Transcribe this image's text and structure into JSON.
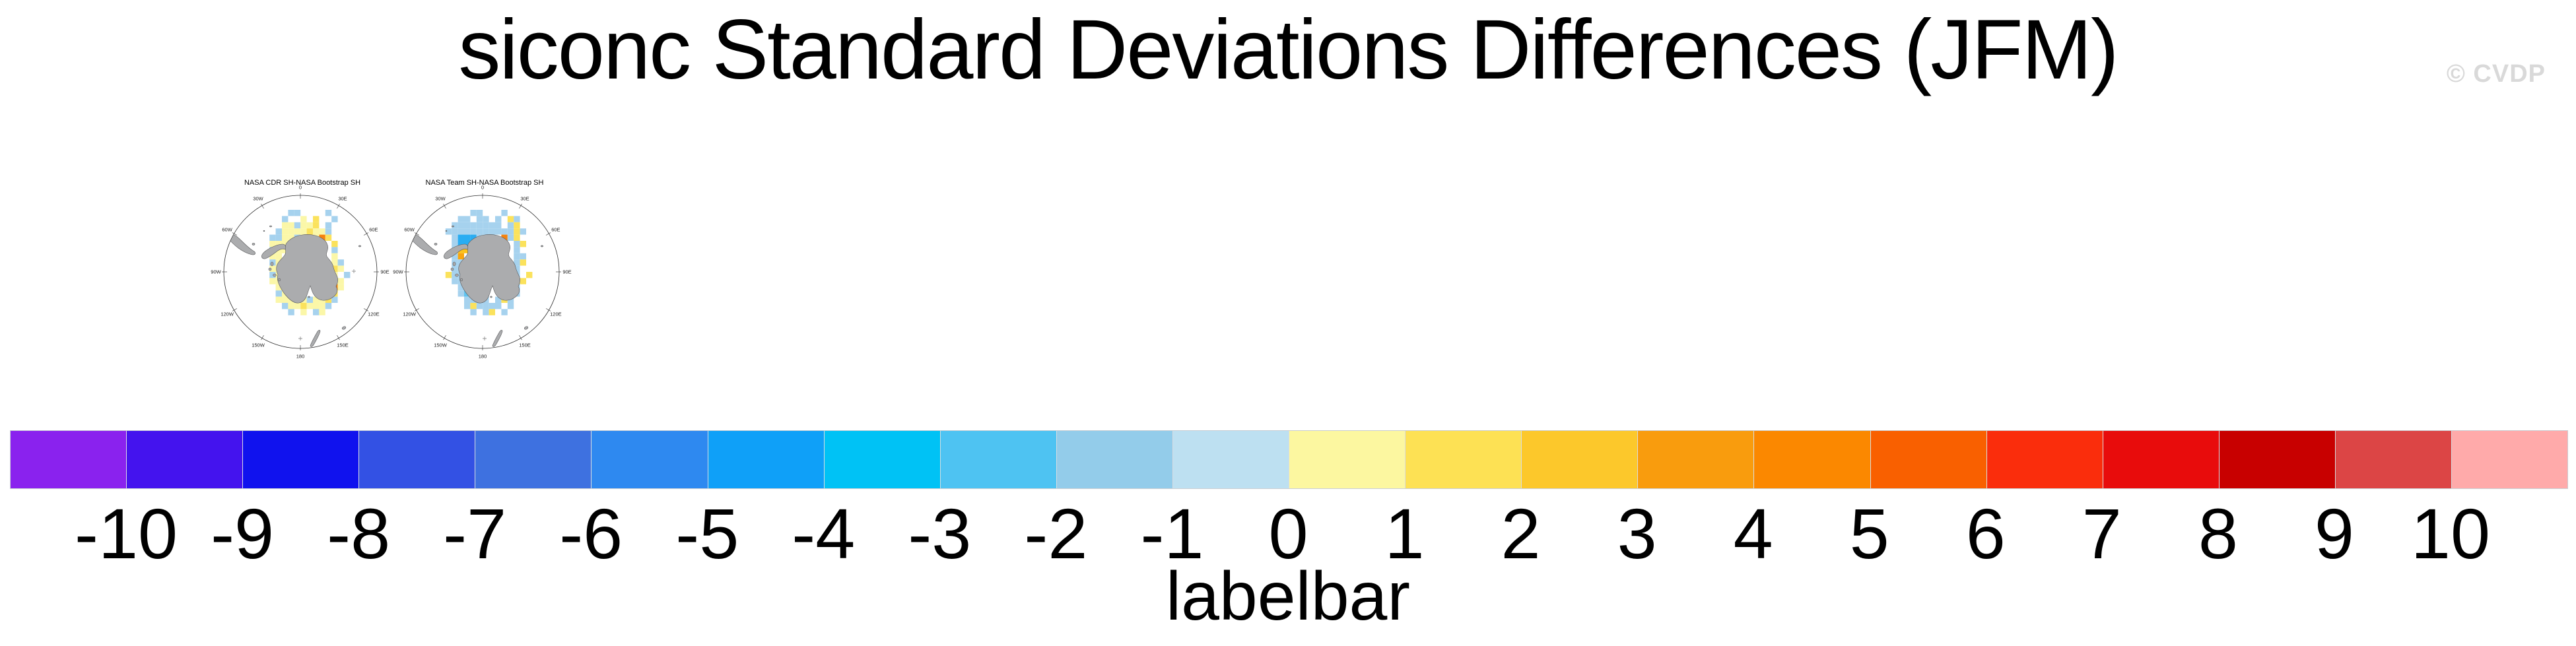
{
  "page": {
    "title": "siconc Standard Deviations Differences (JFM)",
    "watermark": "© CVDP"
  },
  "panels": [
    {
      "title": "NASA CDR SH-NASA Bootstrap SH",
      "lon_labels": [
        "0",
        "30E",
        "60E",
        "90E",
        "120E",
        "150E",
        "180",
        "150W",
        "120W",
        "90W",
        "60W",
        "30W"
      ],
      "cells": [
        [
          6,
          0,
          "lb"
        ],
        [
          7,
          0,
          "lb"
        ],
        [
          12,
          0,
          "lb"
        ],
        [
          5,
          1,
          "lb"
        ],
        [
          8,
          1,
          "py"
        ],
        [
          10,
          1,
          "yl"
        ],
        [
          13,
          1,
          "lb"
        ],
        [
          5,
          2,
          "py"
        ],
        [
          6,
          2,
          "py"
        ],
        [
          7,
          2,
          "lb"
        ],
        [
          8,
          2,
          "py"
        ],
        [
          9,
          2,
          "py"
        ],
        [
          10,
          2,
          "yl"
        ],
        [
          12,
          2,
          "lb"
        ],
        [
          4,
          3,
          "lb"
        ],
        [
          5,
          3,
          "py"
        ],
        [
          6,
          3,
          "py"
        ],
        [
          7,
          3,
          "py"
        ],
        [
          8,
          3,
          "py"
        ],
        [
          9,
          3,
          "yl"
        ],
        [
          10,
          3,
          "py"
        ],
        [
          11,
          3,
          "py"
        ],
        [
          12,
          3,
          "lb"
        ],
        [
          3,
          4,
          "lb"
        ],
        [
          4,
          4,
          "lb"
        ],
        [
          5,
          4,
          "py"
        ],
        [
          6,
          4,
          "py"
        ],
        [
          7,
          4,
          "lb"
        ],
        [
          8,
          4,
          "py"
        ],
        [
          9,
          4,
          "py"
        ],
        [
          10,
          4,
          "py"
        ],
        [
          11,
          4,
          "or"
        ],
        [
          12,
          4,
          "yl"
        ],
        [
          3,
          5,
          "py"
        ],
        [
          4,
          5,
          "py"
        ],
        [
          5,
          5,
          "py"
        ],
        [
          6,
          5,
          "py"
        ],
        [
          13,
          5,
          "yl"
        ],
        [
          3,
          6,
          "lb"
        ],
        [
          4,
          6,
          "py"
        ],
        [
          5,
          6,
          "py"
        ],
        [
          6,
          6,
          "py"
        ],
        [
          13,
          6,
          "lb"
        ],
        [
          3,
          7,
          "py"
        ],
        [
          4,
          7,
          "py"
        ],
        [
          13,
          7,
          "py"
        ],
        [
          3,
          8,
          "lb"
        ],
        [
          4,
          8,
          "py"
        ],
        [
          13,
          8,
          "py"
        ],
        [
          14,
          8,
          "lb"
        ],
        [
          3,
          9,
          "py"
        ],
        [
          4,
          9,
          "py"
        ],
        [
          13,
          9,
          "yl"
        ],
        [
          14,
          9,
          "py"
        ],
        [
          3,
          10,
          "lb"
        ],
        [
          4,
          10,
          "py"
        ],
        [
          5,
          10,
          "py"
        ],
        [
          13,
          10,
          "py"
        ],
        [
          15,
          10,
          "lb"
        ],
        [
          3,
          11,
          "py"
        ],
        [
          4,
          11,
          "py"
        ],
        [
          5,
          11,
          "py"
        ],
        [
          13,
          11,
          "yl"
        ],
        [
          14,
          11,
          "py"
        ],
        [
          4,
          12,
          "py"
        ],
        [
          5,
          12,
          "lb"
        ],
        [
          6,
          12,
          "py"
        ],
        [
          13,
          12,
          "or"
        ],
        [
          14,
          12,
          "py"
        ],
        [
          4,
          13,
          "lb"
        ],
        [
          5,
          13,
          "py"
        ],
        [
          6,
          13,
          "lb"
        ],
        [
          7,
          13,
          "py"
        ],
        [
          12,
          13,
          "py"
        ],
        [
          13,
          13,
          "yl"
        ],
        [
          4,
          14,
          "py"
        ],
        [
          5,
          14,
          "py"
        ],
        [
          6,
          14,
          "py"
        ],
        [
          7,
          14,
          "lb"
        ],
        [
          8,
          14,
          "py"
        ],
        [
          9,
          14,
          "lb"
        ],
        [
          10,
          14,
          "py"
        ],
        [
          11,
          14,
          "py"
        ],
        [
          12,
          14,
          "yl"
        ],
        [
          13,
          14,
          "lb"
        ],
        [
          5,
          15,
          "lb"
        ],
        [
          6,
          15,
          "py"
        ],
        [
          7,
          15,
          "py"
        ],
        [
          8,
          15,
          "yl"
        ],
        [
          9,
          15,
          "py"
        ],
        [
          10,
          15,
          "py"
        ],
        [
          11,
          15,
          "py"
        ],
        [
          12,
          15,
          "lb"
        ],
        [
          6,
          16,
          "lb"
        ],
        [
          8,
          16,
          "py"
        ],
        [
          10,
          16,
          "lb"
        ],
        [
          11,
          16,
          "py"
        ]
      ]
    },
    {
      "title": "NASA Team SH-NASA Bootstrap SH",
      "lon_labels": [
        "0",
        "30E",
        "60E",
        "90E",
        "120E",
        "150E",
        "180",
        "150W",
        "120W",
        "90W",
        "60W",
        "30W"
      ],
      "cells": [
        [
          6,
          0,
          "lb"
        ],
        [
          7,
          0,
          "lb"
        ],
        [
          11,
          0,
          "lb"
        ],
        [
          4,
          1,
          "lb"
        ],
        [
          5,
          1,
          "lb"
        ],
        [
          7,
          1,
          "lb"
        ],
        [
          8,
          1,
          "lb"
        ],
        [
          10,
          1,
          "lb"
        ],
        [
          12,
          1,
          "yl"
        ],
        [
          13,
          1,
          "lb"
        ],
        [
          3,
          2,
          "lb"
        ],
        [
          4,
          2,
          "lb"
        ],
        [
          5,
          2,
          "lb"
        ],
        [
          6,
          2,
          "lb"
        ],
        [
          7,
          2,
          "lb"
        ],
        [
          8,
          2,
          "lb"
        ],
        [
          9,
          2,
          "lb"
        ],
        [
          10,
          2,
          "lb"
        ],
        [
          12,
          2,
          "lb"
        ],
        [
          13,
          2,
          "yl"
        ],
        [
          2,
          3,
          "lb"
        ],
        [
          3,
          3,
          "lb"
        ],
        [
          4,
          3,
          "lb"
        ],
        [
          5,
          3,
          "lb"
        ],
        [
          6,
          3,
          "lb"
        ],
        [
          7,
          3,
          "lb"
        ],
        [
          8,
          3,
          "lb"
        ],
        [
          9,
          3,
          "lb"
        ],
        [
          10,
          3,
          "lb"
        ],
        [
          11,
          3,
          "lb"
        ],
        [
          12,
          3,
          "lb"
        ],
        [
          13,
          3,
          "yl"
        ],
        [
          14,
          3,
          "lb"
        ],
        [
          3,
          4,
          "lb"
        ],
        [
          4,
          4,
          "mb"
        ],
        [
          5,
          4,
          "mb"
        ],
        [
          6,
          4,
          "mb"
        ],
        [
          7,
          4,
          "lb"
        ],
        [
          8,
          4,
          "lb"
        ],
        [
          9,
          4,
          "lb"
        ],
        [
          11,
          4,
          "or"
        ],
        [
          12,
          4,
          "lb"
        ],
        [
          13,
          4,
          "yl"
        ],
        [
          3,
          5,
          "lb"
        ],
        [
          4,
          5,
          "mb"
        ],
        [
          5,
          5,
          "mb"
        ],
        [
          6,
          5,
          "sb"
        ],
        [
          13,
          5,
          "lb"
        ],
        [
          14,
          5,
          "yl"
        ],
        [
          3,
          6,
          "lb"
        ],
        [
          4,
          6,
          "gd"
        ],
        [
          5,
          6,
          "gd"
        ],
        [
          6,
          6,
          "yl"
        ],
        [
          13,
          6,
          "lb"
        ],
        [
          3,
          7,
          "lb"
        ],
        [
          4,
          7,
          "am"
        ],
        [
          13,
          7,
          "lb"
        ],
        [
          14,
          7,
          "lb"
        ],
        [
          3,
          8,
          "lb"
        ],
        [
          4,
          8,
          "lb"
        ],
        [
          13,
          8,
          "lb"
        ],
        [
          14,
          8,
          "yl"
        ],
        [
          3,
          9,
          "lb"
        ],
        [
          4,
          9,
          "lb"
        ],
        [
          13,
          9,
          "lb"
        ],
        [
          2,
          10,
          "yl"
        ],
        [
          3,
          10,
          "lb"
        ],
        [
          4,
          10,
          "lb"
        ],
        [
          13,
          10,
          "lb"
        ],
        [
          15,
          10,
          "yl"
        ],
        [
          3,
          11,
          "lb"
        ],
        [
          4,
          11,
          "lb"
        ],
        [
          5,
          11,
          "sb"
        ],
        [
          13,
          11,
          "lb"
        ],
        [
          14,
          11,
          "yl"
        ],
        [
          4,
          12,
          "lb"
        ],
        [
          5,
          12,
          "sb"
        ],
        [
          6,
          12,
          "mb"
        ],
        [
          7,
          12,
          "mb"
        ],
        [
          12,
          12,
          "lb"
        ],
        [
          13,
          12,
          "lb"
        ],
        [
          4,
          13,
          "lb"
        ],
        [
          5,
          13,
          "sb"
        ],
        [
          6,
          13,
          "mb"
        ],
        [
          7,
          13,
          "mb"
        ],
        [
          8,
          13,
          "sb"
        ],
        [
          12,
          13,
          "yl"
        ],
        [
          13,
          13,
          "lb"
        ],
        [
          5,
          14,
          "lb"
        ],
        [
          6,
          14,
          "lb"
        ],
        [
          7,
          14,
          "sb"
        ],
        [
          8,
          14,
          "lb"
        ],
        [
          10,
          14,
          "lb"
        ],
        [
          11,
          14,
          "yl"
        ],
        [
          12,
          14,
          "lb"
        ],
        [
          5,
          15,
          "lb"
        ],
        [
          6,
          15,
          "yl"
        ],
        [
          7,
          15,
          "lb"
        ],
        [
          8,
          15,
          "lb"
        ],
        [
          9,
          15,
          "lb"
        ],
        [
          10,
          15,
          "lb"
        ],
        [
          12,
          15,
          "lb"
        ],
        [
          6,
          16,
          "lb"
        ],
        [
          8,
          16,
          "lb"
        ],
        [
          9,
          16,
          "yl"
        ],
        [
          11,
          16,
          "lb"
        ]
      ]
    }
  ],
  "map_palette": {
    "py": "#FBF7A8",
    "yl": "#FBE25C",
    "gd": "#FBC21C",
    "am": "#F9A60F",
    "or": "#F5820D",
    "lb": "#A6D2EE",
    "sb": "#5FC4F0",
    "mb": "#29ADF2"
  },
  "map_colors": {
    "land_fill": "#ABACAE",
    "land_stroke": "#58595B",
    "circle_stroke": "#2B2B2B"
  },
  "labelbar": {
    "title": "labelbar",
    "tick_labels": [
      "-10",
      "-9",
      "-8",
      "-7",
      "-6",
      "-5",
      "-4",
      "-3",
      "-2",
      "-1",
      "0",
      "1",
      "2",
      "3",
      "4",
      "5",
      "6",
      "7",
      "8",
      "9",
      "10"
    ],
    "colors": [
      "#8A22EE",
      "#4413EE",
      "#1012EE",
      "#3351E4",
      "#3E71E0",
      "#2E89F0",
      "#0FA0F8",
      "#00C2F5",
      "#4EC3F2",
      "#93CCEA",
      "#BDE0F1",
      "#FCF7A0",
      "#FDE154",
      "#FCC82B",
      "#F99C0D",
      "#FB8800",
      "#F96000",
      "#FA2D0C",
      "#E80C0C",
      "#C80000",
      "#DC4545",
      "#FFAAAA"
    ]
  },
  "chart_data": {
    "type": "heatmap",
    "title": "siconc Standard Deviations Differences (JFM)",
    "panels": [
      {
        "title": "NASA CDR SH-NASA Bootstrap SH",
        "projection": "south polar stereographic",
        "lon_ticks": [
          "0",
          "30E",
          "60E",
          "90E",
          "120E",
          "150E",
          "180",
          "150W",
          "120W",
          "90W",
          "60W",
          "30W"
        ]
      },
      {
        "title": "NASA Team SH-NASA Bootstrap SH",
        "projection": "south polar stereographic",
        "lon_ticks": [
          "0",
          "30E",
          "60E",
          "90E",
          "120E",
          "150E",
          "180",
          "150W",
          "120W",
          "90W",
          "60W",
          "30W"
        ]
      }
    ],
    "labelbar": {
      "label": "labelbar",
      "tick_values": [
        -10,
        -9,
        -8,
        -7,
        -6,
        -5,
        -4,
        -3,
        -2,
        -1,
        0,
        1,
        2,
        3,
        4,
        5,
        6,
        7,
        8,
        9,
        10
      ],
      "colors": [
        "#8A22EE",
        "#4413EE",
        "#1012EE",
        "#3351E4",
        "#3E71E0",
        "#2E89F0",
        "#0FA0F8",
        "#00C2F5",
        "#4EC3F2",
        "#93CCEA",
        "#BDE0F1",
        "#FCF7A0",
        "#FDE154",
        "#FCC82B",
        "#F99C0D",
        "#FB8800",
        "#F96000",
        "#FA2D0C",
        "#E80C0C",
        "#C80000",
        "#DC4545",
        "#FFAAAA"
      ],
      "n_segments": 22,
      "position": "bottom"
    }
  }
}
